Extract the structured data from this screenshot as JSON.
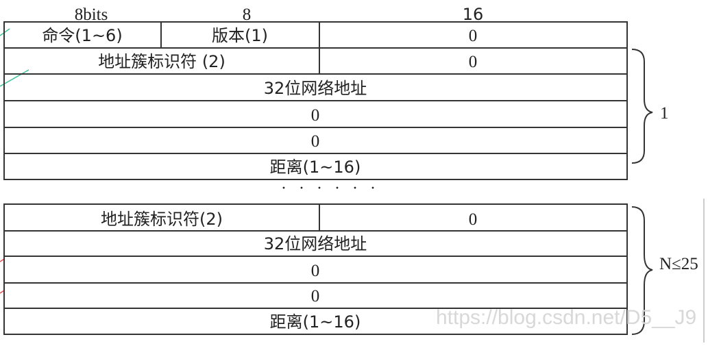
{
  "header": {
    "col1": "8bits",
    "col2": "8",
    "col3": "16"
  },
  "block1": {
    "command": "命令(1~6)",
    "version": "版本(1)",
    "zero_top": "0",
    "afi": "地址簇标识符 (2)",
    "afi_zero": "0",
    "addr": "32位网络地址",
    "zero1": "0",
    "zero2": "0",
    "metric": "距离(1~16)",
    "brace_label": "1"
  },
  "ellipsis": "· · · · · ·",
  "block2": {
    "afi": "地址簇标识符(2)",
    "afi_zero": "0",
    "addr": "32位网络地址",
    "zero1": "0",
    "zero2": "0",
    "metric": "距离(1~16)",
    "brace_label": "N≤25"
  },
  "watermark": "https://blog.csdn.net/D5__J9"
}
